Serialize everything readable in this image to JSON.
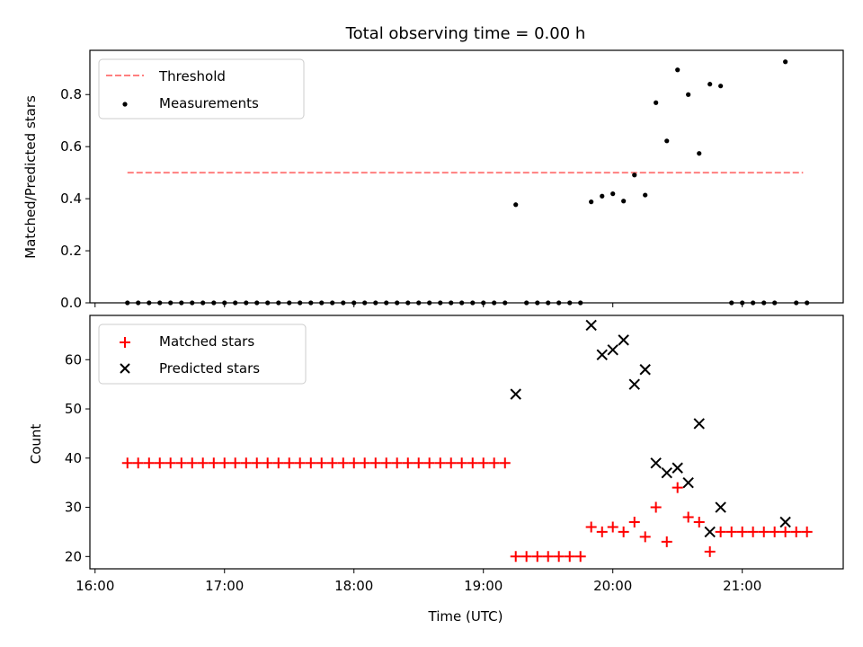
{
  "chart_data": [
    {
      "type": "scatter",
      "panel": "top",
      "title": "Total observing time = 0.00 h",
      "ylabel": "Matched/Predicted stars",
      "xlabel": "",
      "xlim": [
        15.96,
        21.78
      ],
      "ylim": [
        0,
        0.97
      ],
      "xticks": [
        16,
        17,
        18,
        19,
        20,
        21
      ],
      "yticks": [
        0.0,
        0.2,
        0.4,
        0.6,
        0.8
      ],
      "ytick_labels": [
        "0.0",
        "0.2",
        "0.4",
        "0.6",
        "0.8"
      ],
      "legend_position": "upper-left",
      "colors": {
        "threshold": "#ff7f7f",
        "measurements": "#000000"
      },
      "threshold": {
        "name": "Threshold",
        "y": 0.5,
        "x_range": [
          16.25,
          21.47
        ]
      },
      "series": [
        {
          "name": "Measurements",
          "x": [
            16.25,
            16.333,
            16.417,
            16.5,
            16.583,
            16.667,
            16.75,
            16.833,
            16.917,
            17.0,
            17.083,
            17.167,
            17.25,
            17.333,
            17.417,
            17.5,
            17.583,
            17.667,
            17.75,
            17.833,
            17.917,
            18.0,
            18.083,
            18.167,
            18.25,
            18.333,
            18.417,
            18.5,
            18.583,
            18.667,
            18.75,
            18.833,
            18.917,
            19.0,
            19.083,
            19.167,
            19.25,
            19.333,
            19.417,
            19.5,
            19.583,
            19.667,
            19.75,
            19.833,
            19.917,
            20.0,
            20.083,
            20.167,
            20.25,
            20.333,
            20.417,
            20.5,
            20.583,
            20.667,
            20.75,
            20.833,
            20.917,
            21.0,
            21.083,
            21.167,
            21.25,
            21.333,
            21.417,
            21.5
          ],
          "y": [
            0,
            0,
            0,
            0,
            0,
            0,
            0,
            0,
            0,
            0,
            0,
            0,
            0,
            0,
            0,
            0,
            0,
            0,
            0,
            0,
            0,
            0,
            0,
            0,
            0,
            0,
            0,
            0,
            0,
            0,
            0,
            0,
            0,
            0,
            0,
            0,
            0.377,
            0,
            0,
            0,
            0,
            0,
            0,
            0.388,
            0.41,
            0.419,
            0.391,
            0.491,
            0.414,
            0.769,
            0.622,
            0.895,
            0.8,
            0.574,
            0.84,
            0.833,
            0,
            0,
            0,
            0,
            0,
            0.926,
            0,
            0
          ]
        }
      ]
    },
    {
      "type": "scatter",
      "panel": "bottom",
      "xlabel": "Time (UTC)",
      "ylabel": "Count",
      "xlim": [
        15.96,
        21.78
      ],
      "ylim": [
        17.5,
        69
      ],
      "xticks": [
        16,
        17,
        18,
        19,
        20,
        21
      ],
      "xtick_labels": [
        "16:00",
        "17:00",
        "18:00",
        "19:00",
        "20:00",
        "21:00"
      ],
      "yticks": [
        20,
        30,
        40,
        50,
        60
      ],
      "legend_position": "upper-left",
      "colors": {
        "matched": "#ff0000",
        "predicted": "#000000"
      },
      "series": [
        {
          "name": "Matched stars",
          "x": [
            16.25,
            16.333,
            16.417,
            16.5,
            16.583,
            16.667,
            16.75,
            16.833,
            16.917,
            17.0,
            17.083,
            17.167,
            17.25,
            17.333,
            17.417,
            17.5,
            17.583,
            17.667,
            17.75,
            17.833,
            17.917,
            18.0,
            18.083,
            18.167,
            18.25,
            18.333,
            18.417,
            18.5,
            18.583,
            18.667,
            18.75,
            18.833,
            18.917,
            19.0,
            19.083,
            19.167,
            19.25,
            19.333,
            19.417,
            19.5,
            19.583,
            19.667,
            19.75,
            19.833,
            19.917,
            20.0,
            20.083,
            20.167,
            20.25,
            20.333,
            20.417,
            20.5,
            20.583,
            20.667,
            20.75,
            20.833,
            20.917,
            21.0,
            21.083,
            21.167,
            21.25,
            21.333,
            21.417,
            21.5
          ],
          "y": [
            39,
            39,
            39,
            39,
            39,
            39,
            39,
            39,
            39,
            39,
            39,
            39,
            39,
            39,
            39,
            39,
            39,
            39,
            39,
            39,
            39,
            39,
            39,
            39,
            39,
            39,
            39,
            39,
            39,
            39,
            39,
            39,
            39,
            39,
            39,
            39,
            20,
            20,
            20,
            20,
            20,
            20,
            20,
            26,
            25,
            26,
            25,
            27,
            24,
            30,
            23,
            34,
            28,
            27,
            21,
            25,
            25,
            25,
            25,
            25,
            25,
            25,
            25,
            25
          ]
        },
        {
          "name": "Predicted stars",
          "x": [
            19.25,
            19.833,
            19.917,
            20.0,
            20.083,
            20.167,
            20.25,
            20.333,
            20.417,
            20.5,
            20.583,
            20.667,
            20.75,
            20.833,
            21.333
          ],
          "y": [
            53,
            67,
            61,
            62,
            64,
            55,
            58,
            39,
            37,
            38,
            35,
            47,
            25,
            30,
            27
          ]
        }
      ]
    }
  ]
}
